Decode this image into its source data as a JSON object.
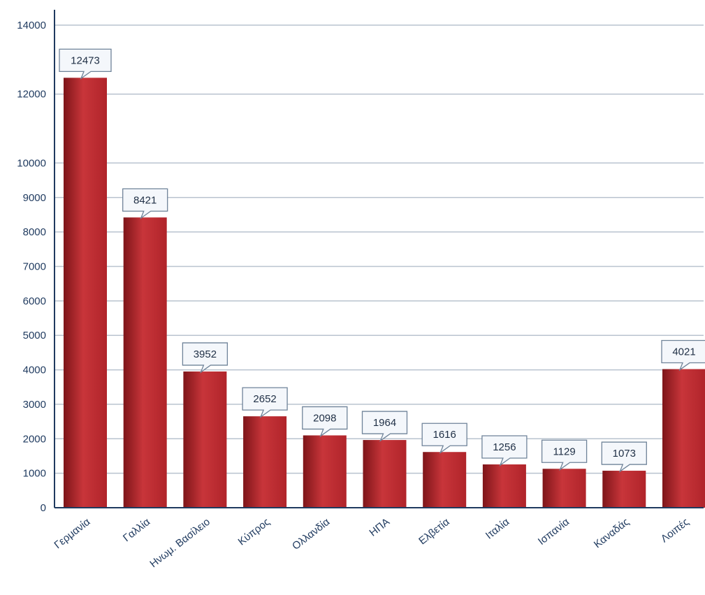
{
  "chart_data": {
    "type": "bar",
    "categories": [
      "Γερμανία",
      "Γαλλία",
      "Ηνωμ. Βασίλειο",
      "Κύπρος",
      "Ολλανδία",
      "ΗΠΑ",
      "Ελβετία",
      "Ιταλία",
      "Ισπανία",
      "Καναδάς",
      "Λοιπές"
    ],
    "values": [
      12473,
      8421,
      3952,
      2652,
      2098,
      1964,
      1616,
      1256,
      1129,
      1073,
      4021
    ],
    "data_labels": [
      "12473",
      "8421",
      "3952",
      "2652",
      "2098",
      "1964",
      "1616",
      "1256",
      "1129",
      "1073",
      "4021"
    ],
    "y_ticks": [
      "0",
      "1000",
      "2000",
      "3000",
      "4000",
      "5000",
      "6000",
      "7000",
      "8000",
      "9000",
      "10000",
      "12000",
      "14000"
    ],
    "title": "",
    "xlabel": "",
    "ylabel": "",
    "ylim": [
      0,
      14000
    ],
    "grid": true,
    "legend": "none",
    "colors": {
      "bar": "#b0242a",
      "bar_dark": "#7e1519",
      "bar_light": "#c8353a",
      "grid": "#b9c3cf",
      "axis": "#1f3a5f",
      "tick_text": "#1f3a5f",
      "callout_fill": "#f4f7fb",
      "callout_stroke": "#6f8399"
    }
  }
}
